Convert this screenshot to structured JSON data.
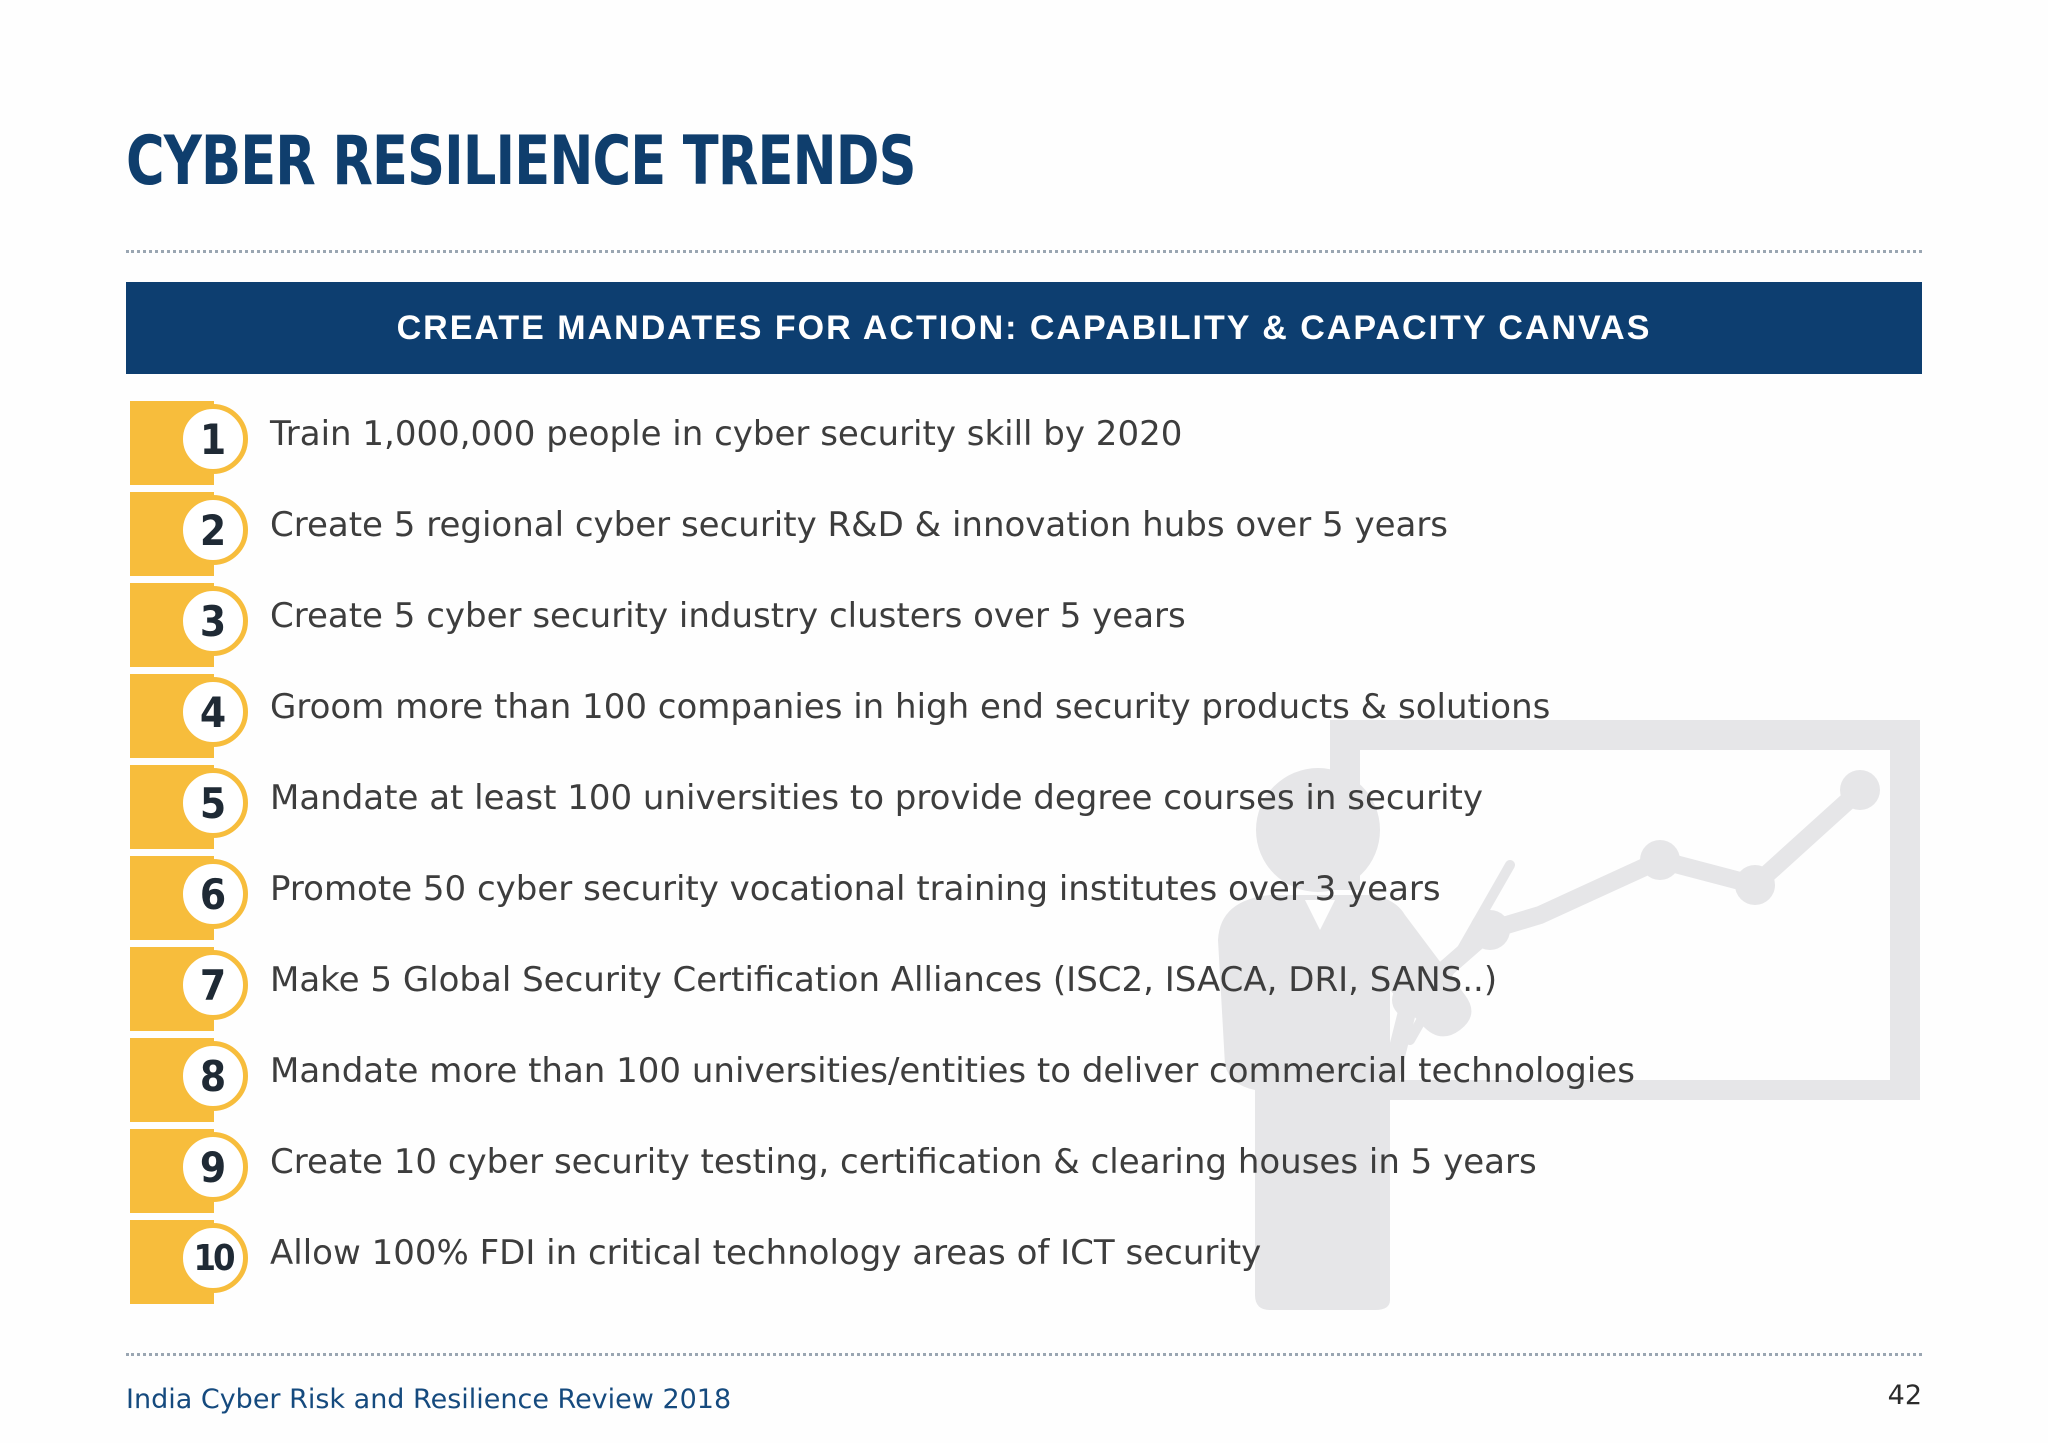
{
  "page": {
    "title": "CYBER RESILIENCE TRENDS",
    "banner": "CREATE MANDATES FOR ACTION: CAPABILITY & CAPACITY CANVAS"
  },
  "items": [
    {
      "number": "1",
      "text": "Train 1,000,000 people in cyber security skill by 2020"
    },
    {
      "number": "2",
      "text": "Create 5 regional cyber security R&D & innovation hubs over 5 years"
    },
    {
      "number": "3",
      "text": "Create 5 cyber security industry clusters over 5 years"
    },
    {
      "number": "4",
      "text": "Groom more than 100 companies in high end security products & solutions"
    },
    {
      "number": "5",
      "text": "Mandate at least 100 universities to provide degree courses in security"
    },
    {
      "number": "6",
      "text": "Promote 50 cyber security vocational training institutes over 3 years"
    },
    {
      "number": "7",
      "text": "Make 5 Global Security Certification Alliances (ISC2, ISACA, DRI, SANS..)"
    },
    {
      "number": "8",
      "text": "Mandate more than 100 universities/entities to deliver commercial technologies"
    },
    {
      "number": "9",
      "text": "Create 10 cyber security testing, certification & clearing houses in 5 years"
    },
    {
      "number": "10",
      "text": "Allow 100% FDI in critical technology areas of  ICT security"
    }
  ],
  "footer": {
    "source": "India Cyber Risk and Resilience Review 2018",
    "page_number": "42"
  },
  "colors": {
    "navy": "#0d3e70",
    "accent_yellow": "#f7bd3c",
    "watermark_gray": "#e6e6e8"
  },
  "icons": {
    "background": "presenter-with-chart-icon"
  }
}
